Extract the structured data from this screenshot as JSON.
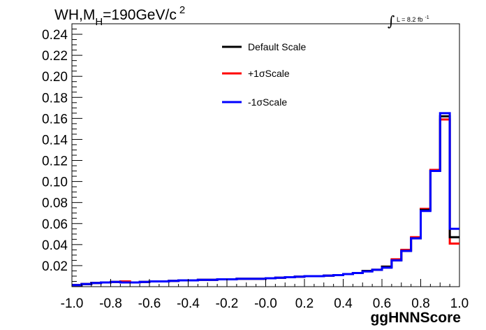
{
  "chart_data": {
    "type": "line",
    "style": "step-histogram",
    "title": {
      "main": "WH,M",
      "sub": "H",
      "rest": "=190GeV/c",
      "sup": "2"
    },
    "lumi": {
      "integral": "∫",
      "text": "L = 8.2 fb",
      "sup": "-1"
    },
    "xlabel": "ggHNNScore",
    "ylabel": "",
    "xlim": [
      -1.0,
      1.0
    ],
    "ylim": [
      0.0,
      0.25
    ],
    "x_ticks": [
      "-1.0",
      "-0.8",
      "-0.6",
      "-0.4",
      "-0.2",
      "-0.0",
      "0.2",
      "0.4",
      "0.6",
      "0.8",
      "1.0"
    ],
    "y_ticks": [
      "0.02",
      "0.04",
      "0.06",
      "0.08",
      "0.10",
      "0.12",
      "0.14",
      "0.16",
      "0.18",
      "0.20",
      "0.22",
      "0.24"
    ],
    "bin_edges": [
      -1.0,
      -0.95,
      -0.9,
      -0.85,
      -0.8,
      -0.75,
      -0.7,
      -0.65,
      -0.6,
      -0.55,
      -0.5,
      -0.45,
      -0.4,
      -0.35,
      -0.3,
      -0.25,
      -0.2,
      -0.15,
      -0.1,
      -0.05,
      0.0,
      0.05,
      0.1,
      0.15,
      0.2,
      0.25,
      0.3,
      0.35,
      0.4,
      0.45,
      0.5,
      0.55,
      0.6,
      0.65,
      0.7,
      0.75,
      0.8,
      0.85,
      0.9,
      0.95,
      1.0
    ],
    "series": [
      {
        "name": "Default Scale",
        "color": "#000000",
        "values": [
          0.0015,
          0.0025,
          0.0035,
          0.004,
          0.0045,
          0.004,
          0.004,
          0.0045,
          0.005,
          0.005,
          0.0055,
          0.006,
          0.006,
          0.0065,
          0.0065,
          0.007,
          0.007,
          0.0075,
          0.0075,
          0.0075,
          0.008,
          0.0085,
          0.009,
          0.0095,
          0.01,
          0.01,
          0.0105,
          0.011,
          0.012,
          0.013,
          0.015,
          0.016,
          0.019,
          0.025,
          0.034,
          0.046,
          0.073,
          0.11,
          0.162,
          0.047
        ]
      },
      {
        "name": "+1σScale",
        "color": "#ff0000",
        "values": [
          0.0015,
          0.0025,
          0.0035,
          0.004,
          0.0045,
          0.005,
          0.004,
          0.0045,
          0.005,
          0.005,
          0.0055,
          0.006,
          0.006,
          0.0065,
          0.0065,
          0.007,
          0.007,
          0.0075,
          0.0075,
          0.0075,
          0.008,
          0.0085,
          0.009,
          0.0095,
          0.01,
          0.01,
          0.0105,
          0.011,
          0.012,
          0.013,
          0.015,
          0.016,
          0.019,
          0.026,
          0.035,
          0.047,
          0.074,
          0.111,
          0.159,
          0.041
        ]
      },
      {
        "name": "-1σScale",
        "color": "#0000ff",
        "values": [
          0.0015,
          0.0025,
          0.0035,
          0.004,
          0.0045,
          0.004,
          0.004,
          0.0045,
          0.005,
          0.005,
          0.0055,
          0.006,
          0.006,
          0.0065,
          0.0065,
          0.007,
          0.007,
          0.0075,
          0.0075,
          0.0075,
          0.008,
          0.0085,
          0.009,
          0.0095,
          0.01,
          0.01,
          0.0105,
          0.011,
          0.012,
          0.013,
          0.0145,
          0.016,
          0.018,
          0.025,
          0.034,
          0.046,
          0.072,
          0.11,
          0.165,
          0.055
        ]
      }
    ],
    "legend_position": "top-center",
    "grid": false
  }
}
